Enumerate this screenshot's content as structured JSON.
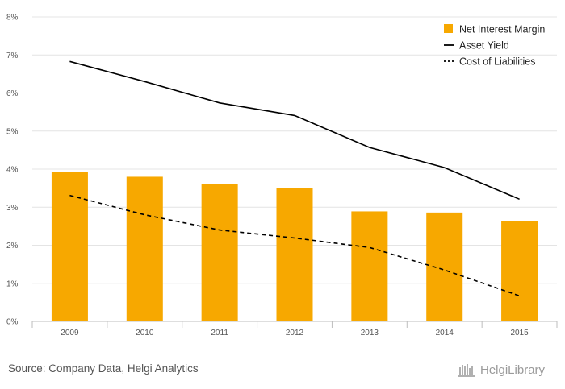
{
  "chart_data": {
    "type": "bar",
    "categories": [
      "2009",
      "2010",
      "2011",
      "2012",
      "2013",
      "2014",
      "2015"
    ],
    "series": [
      {
        "name": "Net Interest Margin",
        "kind": "bar",
        "color": "#f7a800",
        "values": [
          3.92,
          3.8,
          3.6,
          3.5,
          2.89,
          2.86,
          2.63
        ]
      },
      {
        "name": "Asset Yield",
        "kind": "line",
        "style": "solid",
        "color": "#000000",
        "values": [
          6.83,
          6.3,
          5.74,
          5.41,
          4.57,
          4.04,
          3.21
        ]
      },
      {
        "name": "Cost of Liabilities",
        "kind": "line",
        "style": "dashed",
        "color": "#000000",
        "values": [
          3.31,
          2.8,
          2.4,
          2.19,
          1.94,
          1.35,
          0.67
        ]
      }
    ],
    "yticks": [
      "0%",
      "1%",
      "2%",
      "3%",
      "4%",
      "5%",
      "6%",
      "7%",
      "8%"
    ],
    "ylim": [
      0,
      8
    ],
    "grid": true,
    "legend_position": "top-right",
    "xlabel": "",
    "ylabel": ""
  },
  "footer": {
    "source": "Source: Company Data, Helgi Analytics",
    "logo_text": "HelgiLibrary"
  }
}
